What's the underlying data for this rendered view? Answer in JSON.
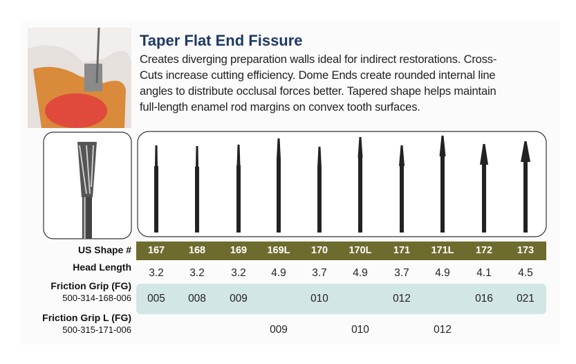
{
  "header": {
    "title": "Taper Flat End Fissure",
    "description": [
      "Creates diverging preparation walls ideal for indirect restorations. Cross-",
      "Cuts increase cutting efficiency. Dome Ends create rounded internal line",
      "angles to distribute occlusal forces better. Tapered shape helps maintain",
      "full-length enamel rod margins on convex tooth surfaces."
    ]
  },
  "table": {
    "row_labels": [
      {
        "label": "US Shape #"
      },
      {
        "label": "Head Length"
      },
      {
        "label": "Friction Grip (FG)",
        "sublabel": "500-314-168-006"
      },
      {
        "label": "Friction Grip L (FG)",
        "sublabel": "500-315-171-006"
      }
    ],
    "shapes": [
      "167",
      "168",
      "169",
      "169L",
      "170",
      "170L",
      "171",
      "171L",
      "172",
      "173"
    ],
    "head_lengths": [
      "3.2",
      "3.2",
      "3.2",
      "4.9",
      "3.7",
      "4.9",
      "3.7",
      "4.9",
      "4.1",
      "4.5"
    ],
    "friction_grip": [
      "005",
      "008",
      "009",
      null,
      "010",
      null,
      "012",
      null,
      "016",
      "021"
    ],
    "friction_grip_l": [
      null,
      null,
      null,
      "009",
      null,
      "010",
      null,
      "012",
      null,
      null
    ]
  }
}
